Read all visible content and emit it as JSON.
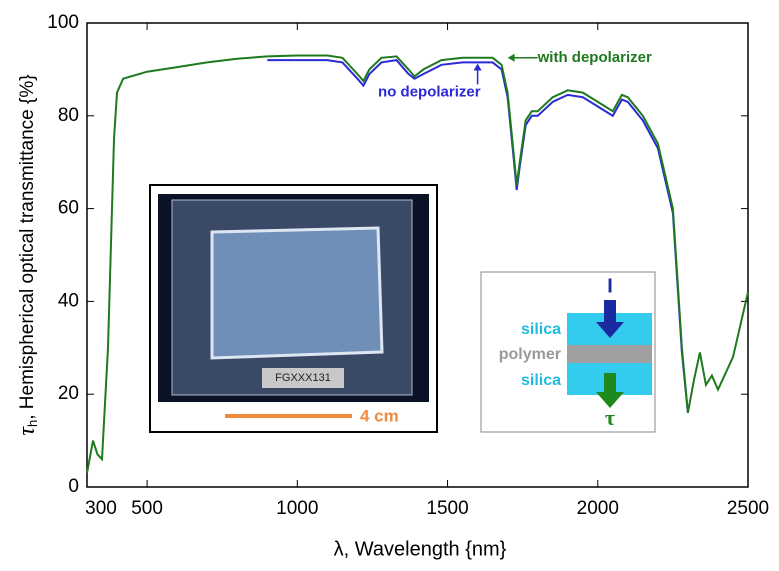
{
  "chart_data": {
    "type": "line",
    "xlabel": "λ, Wavelength {nm}",
    "ylabel_symbol": "τ",
    "ylabel_subscript": "h",
    "ylabel": ", Hemispherical optical transmittance {%}",
    "xlim": [
      300,
      2500
    ],
    "xticks": [
      300,
      500,
      1000,
      1500,
      2000,
      2500
    ],
    "ylim": [
      0,
      100
    ],
    "yticks": [
      0,
      20,
      40,
      60,
      80,
      100
    ],
    "series": [
      {
        "name": "with depolarizer",
        "color": "#1e7a1e",
        "x": [
          300,
          320,
          335,
          350,
          370,
          390,
          400,
          420,
          500,
          600,
          700,
          800,
          900,
          1000,
          1100,
          1150,
          1200,
          1220,
          1240,
          1280,
          1330,
          1370,
          1390,
          1420,
          1480,
          1550,
          1650,
          1680,
          1700,
          1720,
          1730,
          1740,
          1760,
          1780,
          1800,
          1850,
          1900,
          1950,
          2000,
          2050,
          2080,
          2100,
          2150,
          2200,
          2250,
          2280,
          2300,
          2320,
          2340,
          2360,
          2380,
          2400,
          2450,
          2500
        ],
        "values": [
          3,
          10,
          7,
          6,
          30,
          75,
          85,
          88,
          89.5,
          90.5,
          91.5,
          92.3,
          92.8,
          93,
          93,
          92.5,
          89,
          87.5,
          90,
          92.5,
          92.8,
          90,
          88.5,
          90,
          92,
          92.5,
          92.5,
          91,
          85,
          72,
          65,
          70,
          79,
          81,
          81,
          84,
          85.5,
          85,
          83,
          81,
          84.5,
          84,
          80,
          74,
          60,
          30,
          16,
          23,
          29,
          22,
          24,
          21,
          28,
          42
        ]
      },
      {
        "name": "no depolarizer",
        "color": "#2a2ad6",
        "x": [
          900,
          1000,
          1100,
          1150,
          1200,
          1220,
          1240,
          1280,
          1330,
          1370,
          1390,
          1420,
          1480,
          1550,
          1650,
          1680,
          1700,
          1720,
          1730,
          1740,
          1760,
          1780,
          1800,
          1850,
          1900,
          1950,
          2000,
          2050,
          2080,
          2100,
          2150,
          2200,
          2250,
          2280,
          2300
        ],
        "values": [
          92,
          92,
          92,
          91.5,
          88,
          86.5,
          89,
          91.5,
          92,
          89,
          88,
          89,
          91,
          91.5,
          91.5,
          90,
          84,
          71,
          64,
          69,
          78,
          80,
          80,
          83,
          84.5,
          84,
          82,
          80,
          83.5,
          83,
          79,
          73,
          59,
          29,
          16
        ]
      }
    ],
    "photo_label": "FGXXX131",
    "scale_bar_label": "4 cm",
    "diagram": {
      "input": "I",
      "output": "τ",
      "layers": [
        "silica",
        "polymer",
        "silica"
      ]
    }
  }
}
